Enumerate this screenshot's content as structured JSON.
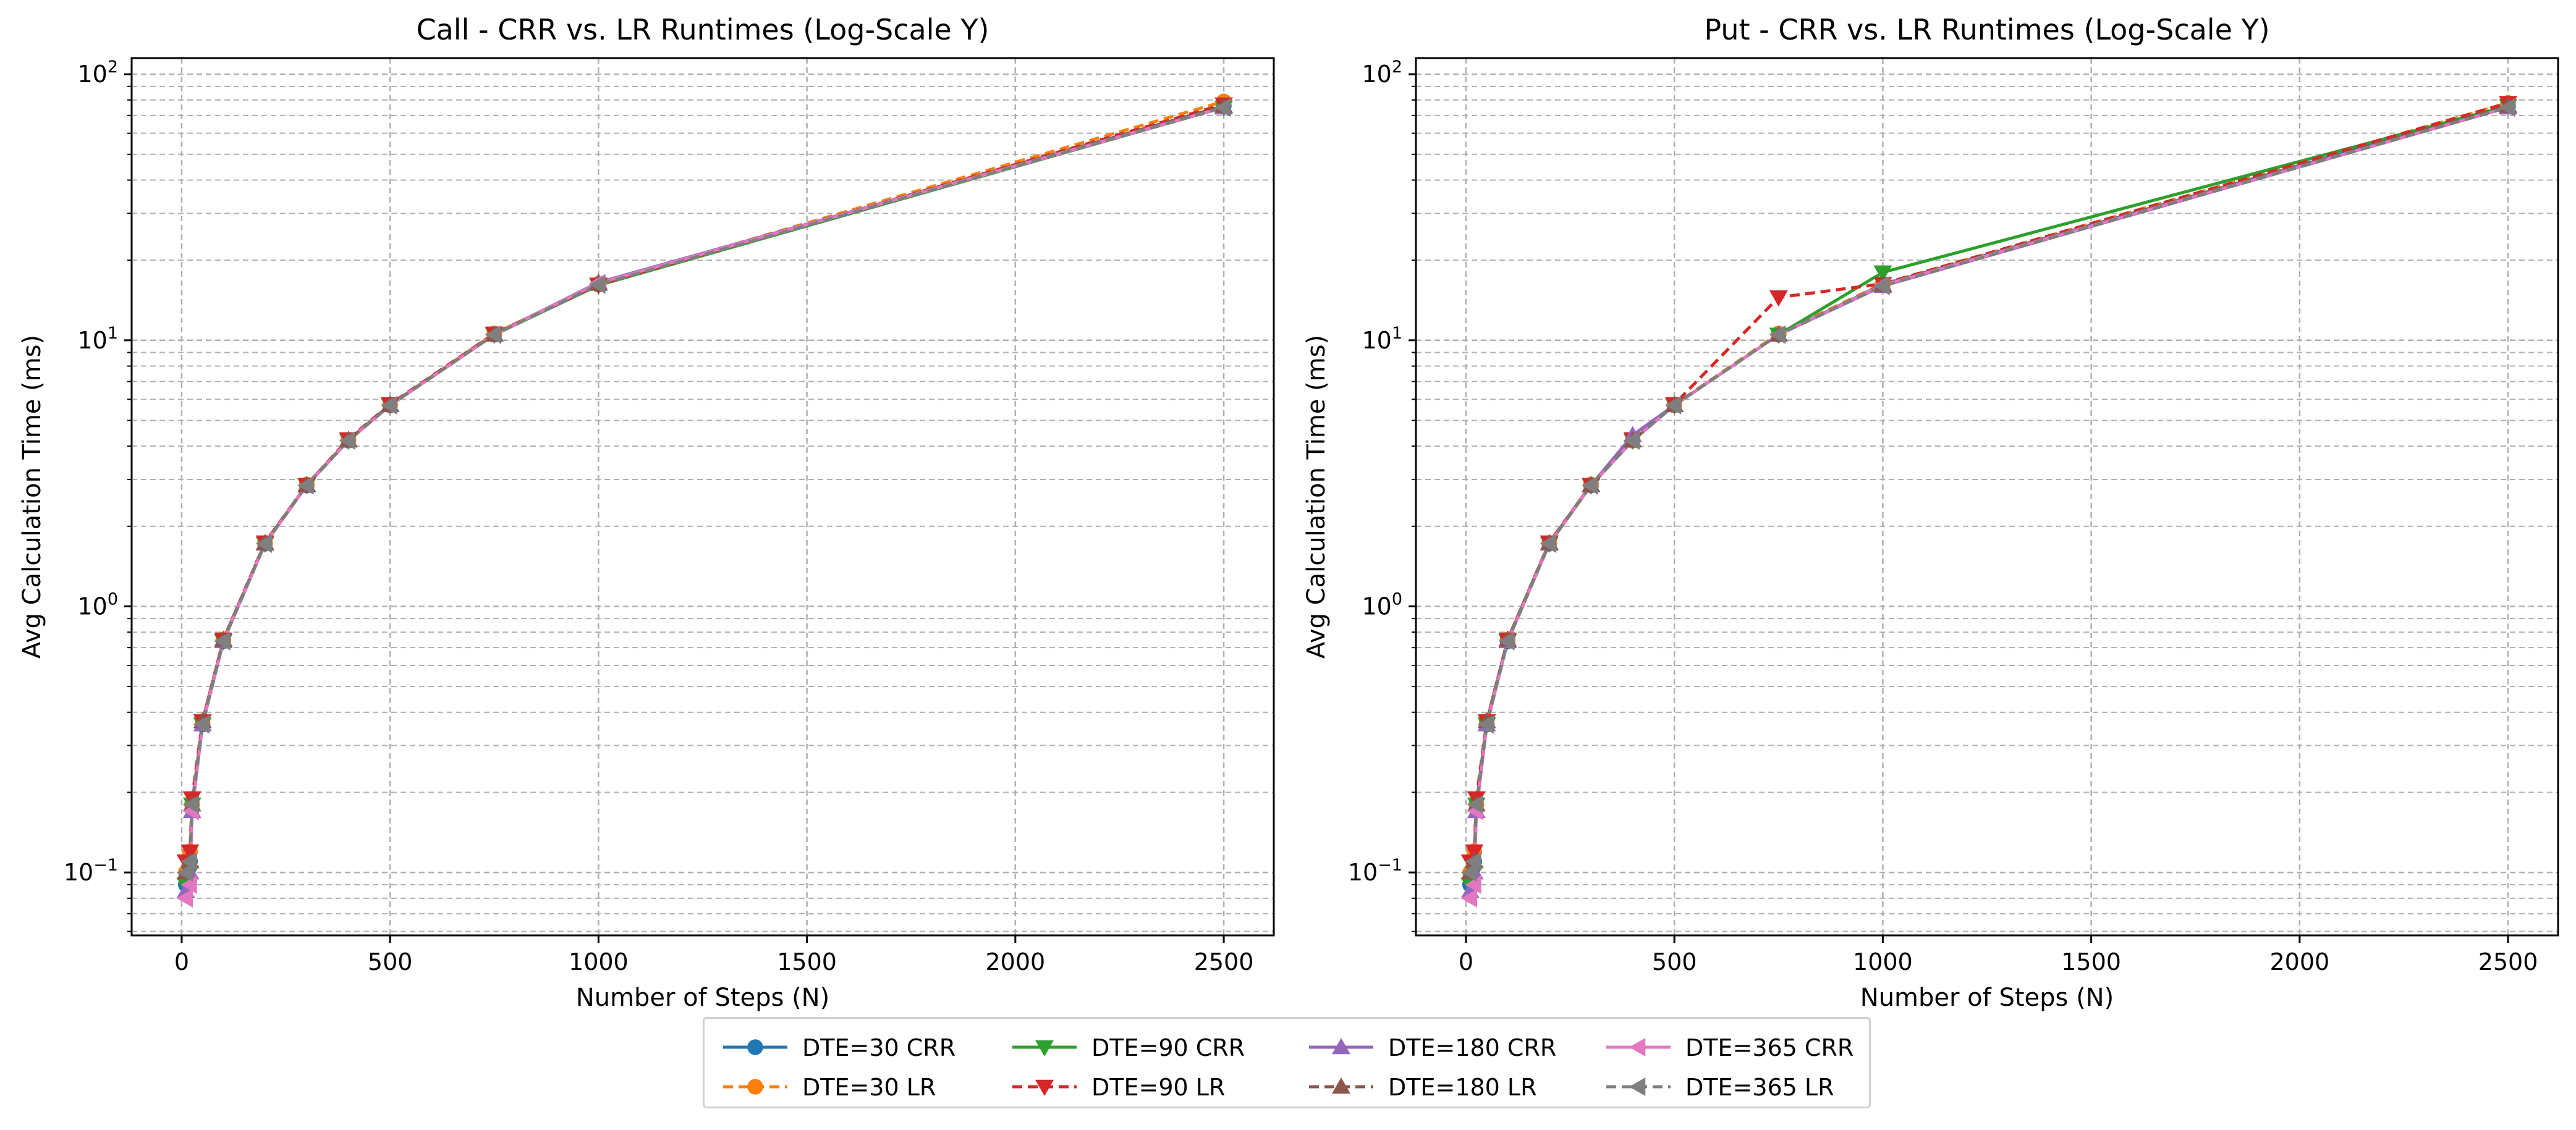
{
  "charts": [
    {
      "id": "call",
      "title": "Call - CRR vs. LR Runtimes (Log-Scale Y)",
      "xlabel": "Number of Steps (N)",
      "ylabel": "Avg Calculation Time (ms)",
      "xticks": [
        {
          "v": 0,
          "label": "0"
        },
        {
          "v": 500,
          "label": "500"
        },
        {
          "v": 1000,
          "label": "1000"
        },
        {
          "v": 1500,
          "label": "1500"
        },
        {
          "v": 2000,
          "label": "2000"
        },
        {
          "v": 2500,
          "label": "2500"
        }
      ],
      "yticks": [
        {
          "v": 0.1,
          "base": "10",
          "exp": "−1"
        },
        {
          "v": 1,
          "base": "10",
          "exp": "0"
        },
        {
          "v": 10,
          "base": "10",
          "exp": "1"
        },
        {
          "v": 100,
          "base": "10",
          "exp": "2"
        }
      ]
    },
    {
      "id": "put",
      "title": "Put - CRR vs. LR Runtimes (Log-Scale Y)",
      "xlabel": "Number of Steps (N)",
      "ylabel": "Avg Calculation Time (ms)",
      "xticks": [
        {
          "v": 0,
          "label": "0"
        },
        {
          "v": 500,
          "label": "500"
        },
        {
          "v": 1000,
          "label": "1000"
        },
        {
          "v": 1500,
          "label": "1500"
        },
        {
          "v": 2000,
          "label": "2000"
        },
        {
          "v": 2500,
          "label": "2500"
        }
      ],
      "yticks": [
        {
          "v": 0.1,
          "base": "10",
          "exp": "−1"
        },
        {
          "v": 1,
          "base": "10",
          "exp": "0"
        },
        {
          "v": 10,
          "base": "10",
          "exp": "1"
        },
        {
          "v": 100,
          "base": "10",
          "exp": "2"
        }
      ]
    }
  ],
  "legend": [
    {
      "label": "DTE=30 CRR"
    },
    {
      "label": "DTE=30 LR"
    },
    {
      "label": "DTE=90 CRR"
    },
    {
      "label": "DTE=90 LR"
    },
    {
      "label": "DTE=180 CRR"
    },
    {
      "label": "DTE=180 LR"
    },
    {
      "label": "DTE=365 CRR"
    },
    {
      "label": "DTE=365 LR"
    }
  ],
  "chart_data": [
    {
      "type": "line",
      "title": "Call - CRR vs. LR Runtimes (Log-Scale Y)",
      "xlabel": "Number of Steps (N)",
      "ylabel": "Avg Calculation Time (ms)",
      "yscale": "log",
      "xlim": [
        -120,
        2620
      ],
      "ylim": [
        0.058,
        115
      ],
      "grid": true,
      "legend_position": "bottom-center",
      "x": [
        10,
        20,
        25,
        50,
        100,
        200,
        300,
        400,
        500,
        750,
        1000,
        2500
      ],
      "series": [
        {
          "name": "DTE=30 CRR",
          "color": "#1f77b4",
          "linestyle": "solid",
          "marker": "circle",
          "values": [
            0.09,
            0.11,
            0.18,
            0.36,
            0.74,
            1.72,
            2.85,
            4.2,
            5.7,
            10.5,
            16.2,
            76
          ]
        },
        {
          "name": "DTE=30 LR",
          "color": "#ff7f0e",
          "linestyle": "dashed",
          "marker": "circle",
          "values": [
            0.1,
            0.12,
            0.18,
            0.37,
            0.75,
            1.73,
            2.87,
            4.22,
            5.72,
            10.6,
            16.3,
            79
          ]
        },
        {
          "name": "DTE=90 CRR",
          "color": "#2ca02c",
          "linestyle": "solid",
          "marker": "triangle-down",
          "values": [
            0.09,
            0.1,
            0.18,
            0.36,
            0.74,
            1.72,
            2.85,
            4.2,
            5.7,
            10.5,
            16.1,
            75
          ]
        },
        {
          "name": "DTE=90 LR",
          "color": "#d62728",
          "linestyle": "dashed",
          "marker": "triangle-down",
          "values": [
            0.11,
            0.12,
            0.19,
            0.37,
            0.75,
            1.74,
            2.86,
            4.25,
            5.75,
            10.6,
            16.2,
            77
          ]
        },
        {
          "name": "DTE=180 CRR",
          "color": "#9467bd",
          "linestyle": "solid",
          "marker": "triangle-up",
          "values": [
            0.085,
            0.1,
            0.17,
            0.36,
            0.74,
            1.72,
            2.85,
            4.2,
            5.7,
            10.5,
            16.5,
            75
          ]
        },
        {
          "name": "DTE=180 LR",
          "color": "#8c564b",
          "linestyle": "dashed",
          "marker": "triangle-up",
          "values": [
            0.1,
            0.11,
            0.18,
            0.37,
            0.75,
            1.73,
            2.86,
            4.22,
            5.72,
            10.5,
            16.3,
            76
          ]
        },
        {
          "name": "DTE=365 CRR",
          "color": "#e377c2",
          "linestyle": "solid",
          "marker": "triangle-left",
          "values": [
            0.08,
            0.09,
            0.17,
            0.36,
            0.74,
            1.72,
            2.85,
            4.2,
            5.7,
            10.5,
            16.4,
            75
          ]
        },
        {
          "name": "DTE=365 LR",
          "color": "#7f7f7f",
          "linestyle": "dashed",
          "marker": "triangle-left",
          "values": [
            0.1,
            0.11,
            0.18,
            0.36,
            0.74,
            1.72,
            2.85,
            4.2,
            5.7,
            10.5,
            16.2,
            75
          ]
        }
      ]
    },
    {
      "type": "line",
      "title": "Put - CRR vs. LR Runtimes (Log-Scale Y)",
      "xlabel": "Number of Steps (N)",
      "ylabel": "Avg Calculation Time (ms)",
      "yscale": "log",
      "xlim": [
        -120,
        2620
      ],
      "ylim": [
        0.058,
        115
      ],
      "grid": true,
      "legend_position": "bottom-center",
      "x": [
        10,
        20,
        25,
        50,
        100,
        200,
        300,
        400,
        500,
        750,
        1000,
        2500
      ],
      "series": [
        {
          "name": "DTE=30 CRR",
          "color": "#1f77b4",
          "linestyle": "solid",
          "marker": "circle",
          "values": [
            0.09,
            0.11,
            0.18,
            0.36,
            0.74,
            1.72,
            2.85,
            4.2,
            5.7,
            10.5,
            16.2,
            76
          ]
        },
        {
          "name": "DTE=30 LR",
          "color": "#ff7f0e",
          "linestyle": "dashed",
          "marker": "circle",
          "values": [
            0.1,
            0.12,
            0.18,
            0.37,
            0.75,
            1.73,
            2.87,
            4.2,
            5.72,
            10.6,
            16.3,
            78
          ]
        },
        {
          "name": "DTE=90 CRR",
          "color": "#2ca02c",
          "linestyle": "solid",
          "marker": "triangle-down",
          "values": [
            0.09,
            0.1,
            0.18,
            0.36,
            0.74,
            1.72,
            2.85,
            4.2,
            5.7,
            10.5,
            18.0,
            76
          ]
        },
        {
          "name": "DTE=90 LR",
          "color": "#d62728",
          "linestyle": "dashed",
          "marker": "triangle-down",
          "values": [
            0.11,
            0.12,
            0.19,
            0.37,
            0.75,
            1.74,
            2.86,
            4.25,
            5.75,
            14.5,
            16.3,
            78
          ]
        },
        {
          "name": "DTE=180 CRR",
          "color": "#9467bd",
          "linestyle": "solid",
          "marker": "triangle-up",
          "values": [
            0.085,
            0.1,
            0.17,
            0.36,
            0.74,
            1.72,
            2.85,
            4.4,
            5.7,
            10.5,
            16.0,
            75
          ]
        },
        {
          "name": "DTE=180 LR",
          "color": "#8c564b",
          "linestyle": "dashed",
          "marker": "triangle-up",
          "values": [
            0.1,
            0.11,
            0.18,
            0.37,
            0.75,
            1.73,
            2.86,
            4.2,
            5.72,
            10.5,
            16.2,
            76
          ]
        },
        {
          "name": "DTE=365 CRR",
          "color": "#e377c2",
          "linestyle": "solid",
          "marker": "triangle-left",
          "values": [
            0.08,
            0.09,
            0.17,
            0.36,
            0.74,
            1.72,
            2.85,
            4.2,
            5.7,
            10.5,
            16.1,
            75
          ]
        },
        {
          "name": "DTE=365 LR",
          "color": "#7f7f7f",
          "linestyle": "dashed",
          "marker": "triangle-left",
          "values": [
            0.1,
            0.11,
            0.18,
            0.36,
            0.74,
            1.72,
            2.85,
            4.2,
            5.7,
            10.5,
            16.0,
            75
          ]
        }
      ]
    }
  ]
}
